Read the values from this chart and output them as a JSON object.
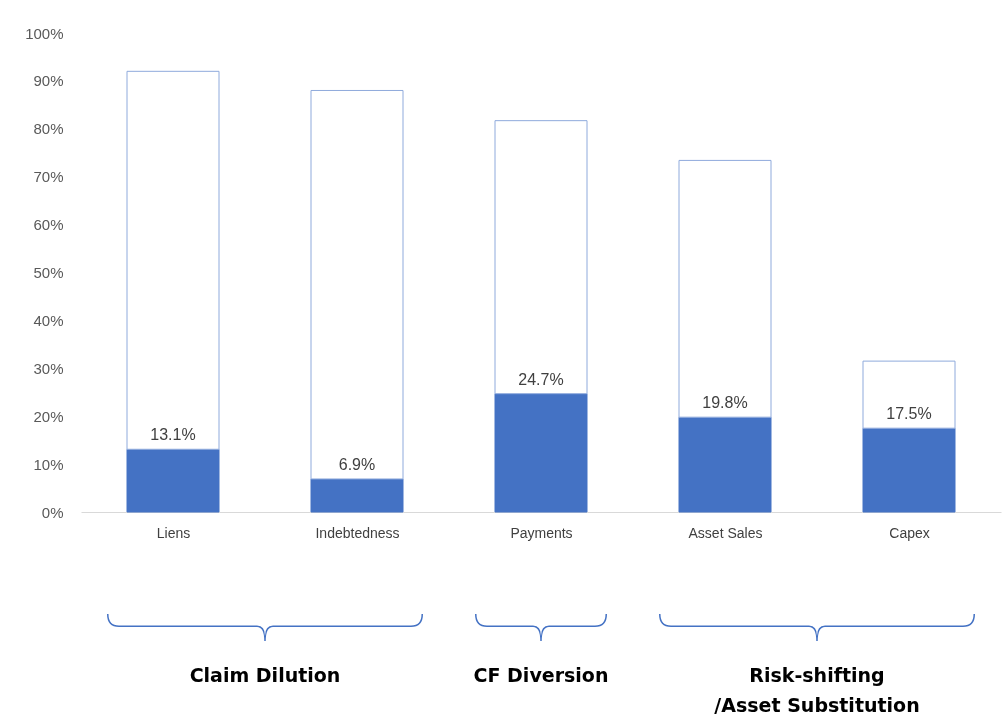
{
  "chart_data": {
    "type": "bar",
    "stacked": true,
    "categories": [
      "Liens",
      "Indebtedness",
      "Payments",
      "Asset Sales",
      "Capex"
    ],
    "series": [
      {
        "color": "#4472c4",
        "values": [
          13.1,
          6.9,
          24.7,
          19.8,
          17.5
        ],
        "value_labels": [
          "13.1%",
          "6.9%",
          "24.7%",
          "19.8%",
          "17.5%"
        ]
      },
      {
        "color": "#8faadc",
        "values": [
          78.9,
          81.1,
          57.0,
          53.6,
          14.0
        ]
      }
    ],
    "ylim": [
      0,
      100
    ],
    "yticks": [
      {
        "value": 0,
        "label": "0%"
      },
      {
        "value": 10,
        "label": "10%"
      },
      {
        "value": 20,
        "label": "20%"
      },
      {
        "value": 30,
        "label": "30%"
      },
      {
        "value": 40,
        "label": "40%"
      },
      {
        "value": 50,
        "label": "50%"
      },
      {
        "value": 60,
        "label": "60%"
      },
      {
        "value": 70,
        "label": "70%"
      },
      {
        "value": 80,
        "label": "80%"
      },
      {
        "value": 90,
        "label": "90%"
      },
      {
        "value": 100,
        "label": "100%"
      }
    ],
    "grid": false,
    "legend": false,
    "annotations": [
      "Claim Dilution",
      "CF Diversion",
      "Risk-shifting\n/Asset Substitution"
    ]
  }
}
